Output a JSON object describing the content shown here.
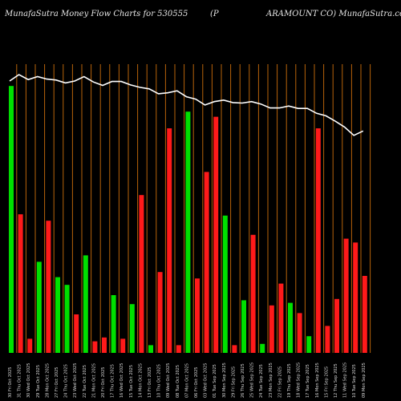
{
  "header": {
    "left": "MunafaSutra  Money Flow  Charts for 530555",
    "mid": "(P",
    "right": "ARAMOUNT  CO) MunafaSutra.com"
  },
  "chart_data": {
    "type": "bar",
    "categories": [
      "30 Fri Oct 2025",
      "31 Thu Oct 2025",
      "30 Wed Oct 2025",
      "29 Tue Oct 2025",
      "28 Mon Oct 2025",
      "27 Fri Oct 2025",
      "24 Thu Oct 2025",
      "23 Wed Oct 2025",
      "22 Tue Oct 2025",
      "21 Mon Oct 2025",
      "20 Fri Oct 2025",
      "17 Thu Oct 2025",
      "16 Wed Oct 2025",
      "15 Tue Oct 2025",
      "14 Mon Oct 2025",
      "13 Fri Oct 2025",
      "10 Thu Oct 2025",
      "09 Wed Oct 2025",
      "08 Tue Oct 2025",
      "07 Mon Oct 2025",
      "06 Fri Oct 2025",
      "03 Wed Oct 2025",
      "01 Tue Sep 2025",
      "30 Mon Sep 2025",
      "29 Fri Sep 2025",
      "26 Thu Sep 2025",
      "25 Wed Sep 2025",
      "24 Tue Sep 2025",
      "23 Mon Sep 2025",
      "22 Fri Sep 2025",
      "19 Thu Sep 2025",
      "18 Wed Sep 2025",
      "17 Tue Sep 2025",
      "16 Mon Sep 2025",
      "15 Fri Sep 2025",
      "12 Thu Sep 2025",
      "11 Wed Sep 2025",
      "10 Tue Sep 2025",
      "09 Mon Sep 2025"
    ],
    "values": [
      208,
      108,
      11,
      71,
      103,
      59,
      53,
      30,
      76,
      9,
      12,
      45,
      11,
      38,
      123,
      6,
      63,
      175,
      6,
      188,
      58,
      141,
      184,
      107,
      6,
      41,
      92,
      7,
      37,
      54,
      39,
      31,
      13,
      175,
      21,
      42,
      89,
      86,
      60
    ],
    "colors": [
      "#00e000",
      "#ff1a1a",
      "#ff1a1a",
      "#00e000",
      "#ff1a1a",
      "#00e000",
      "#00e000",
      "#ff1a1a",
      "#00e000",
      "#ff1a1a",
      "#ff1a1a",
      "#00e000",
      "#ff1a1a",
      "#00e000",
      "#ff1a1a",
      "#00e000",
      "#ff1a1a",
      "#ff1a1a",
      "#ff1a1a",
      "#00e000",
      "#ff1a1a",
      "#ff1a1a",
      "#ff1a1a",
      "#00e000",
      "#ff1a1a",
      "#00e000",
      "#ff1a1a",
      "#00e000",
      "#ff1a1a",
      "#ff1a1a",
      "#00e000",
      "#ff1a1a",
      "#00e000",
      "#ff1a1a",
      "#ff1a1a",
      "#ff1a1a",
      "#ff1a1a",
      "#ff1a1a",
      "#ff1a1a"
    ],
    "price_line": [
      342,
      355,
      345,
      351,
      346,
      344,
      338,
      342,
      351,
      340,
      333,
      341,
      341,
      334,
      329,
      326,
      316,
      318,
      322,
      310,
      305,
      293,
      300,
      303,
      298,
      297,
      300,
      295,
      287,
      287,
      291,
      286,
      286,
      276,
      271,
      260,
      248,
      231,
      240
    ],
    "xlabel": "",
    "ylabel": "",
    "grid": true,
    "gridline_color": "#b8630a",
    "line_color": "#ffffff",
    "background": "#000000"
  }
}
